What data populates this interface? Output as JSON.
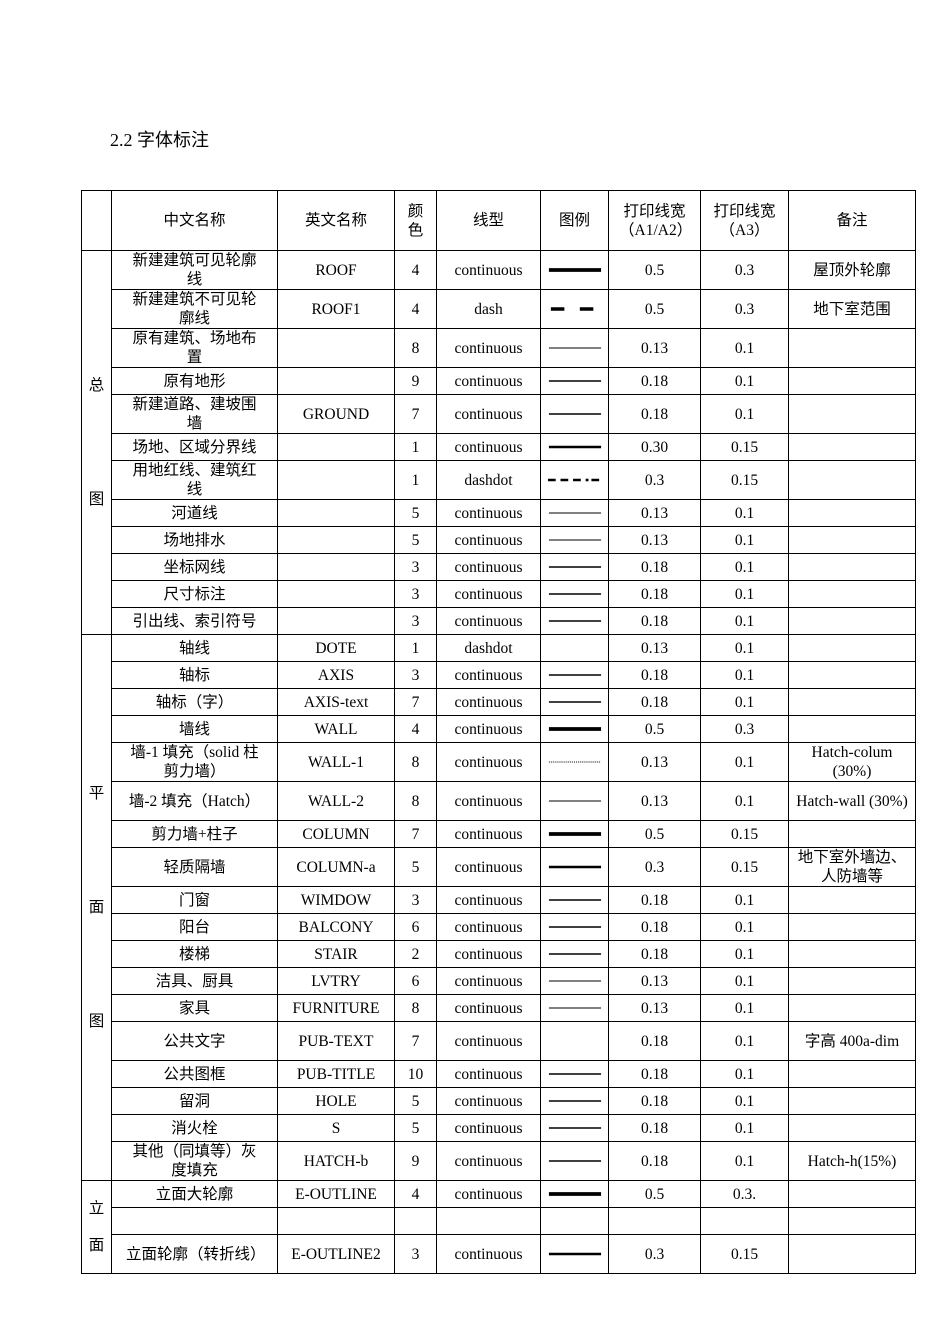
{
  "heading": "2.2 字体标注",
  "table": {
    "headers": [
      "",
      "中文名称",
      "英文名称",
      "颜色",
      "线型",
      "图例",
      "打印线宽（A1/A2）",
      "打印线宽（A3）",
      "备注"
    ],
    "groups": [
      {
        "label": [
          "总",
          "图"
        ],
        "rows": [
          {
            "cn": "新建建筑可见轮廓线",
            "en": "ROOF",
            "color": "4",
            "type": "continuous",
            "legend": "thick",
            "w1": "0.5",
            "w3": "0.3",
            "note": "屋顶外轮廓"
          },
          {
            "cn": "新建建筑不可见轮廓线",
            "en": "ROOF1",
            "color": "4",
            "type": "dash",
            "legend": "dash",
            "w1": "0.5",
            "w3": "0.3",
            "note": "地下室范围"
          },
          {
            "cn": "原有建筑、场地布置",
            "en": "",
            "color": "8",
            "type": "continuous",
            "legend": "thin",
            "w1": "0.13",
            "w3": "0.1",
            "note": ""
          },
          {
            "cn": "原有地形",
            "en": "",
            "color": "9",
            "type": "continuous",
            "legend": "medium",
            "w1": "0.18",
            "w3": "0.1",
            "note": ""
          },
          {
            "cn": "新建道路、建坡围墙",
            "en": "GROUND",
            "color": "7",
            "type": "continuous",
            "legend": "medium",
            "w1": "0.18",
            "w3": "0.1",
            "note": ""
          },
          {
            "cn": "场地、区域分界线",
            "en": "",
            "color": "1",
            "type": "continuous",
            "legend": "semi-thick",
            "w1": "0.30",
            "w3": "0.15",
            "note": ""
          },
          {
            "cn": "用地红线、建筑红线",
            "en": "",
            "color": "1",
            "type": "dashdot",
            "legend": "dashdot",
            "w1": "0.3",
            "w3": "0.15",
            "note": ""
          },
          {
            "cn": "河道线",
            "en": "",
            "color": "5",
            "type": "continuous",
            "legend": "thin",
            "w1": "0.13",
            "w3": "0.1",
            "note": ""
          },
          {
            "cn": "场地排水",
            "en": "",
            "color": "5",
            "type": "continuous",
            "legend": "thin",
            "w1": "0.13",
            "w3": "0.1",
            "note": ""
          },
          {
            "cn": "坐标网线",
            "en": "",
            "color": "3",
            "type": "continuous",
            "legend": "medium",
            "w1": "0.18",
            "w3": "0.1",
            "note": ""
          },
          {
            "cn": "尺寸标注",
            "en": "",
            "color": "3",
            "type": "continuous",
            "legend": "medium",
            "w1": "0.18",
            "w3": "0.1",
            "note": ""
          },
          {
            "cn": "引出线、索引符号",
            "en": "",
            "color": "3",
            "type": "continuous",
            "legend": "medium",
            "w1": "0.18",
            "w3": "0.1",
            "note": ""
          }
        ]
      },
      {
        "label": [
          "平",
          "面",
          "图"
        ],
        "rows": [
          {
            "cn": "轴线",
            "en": "DOTE",
            "color": "1",
            "type": "dashdot",
            "legend": "none",
            "w1": "0.13",
            "w3": "0.1",
            "note": ""
          },
          {
            "cn": "轴标",
            "en": "AXIS",
            "color": "3",
            "type": "continuous",
            "legend": "medium",
            "w1": "0.18",
            "w3": "0.1",
            "note": ""
          },
          {
            "cn": "轴标（字）",
            "en": "AXIS-text",
            "color": "7",
            "type": "continuous",
            "legend": "medium",
            "w1": "0.18",
            "w3": "0.1",
            "note": ""
          },
          {
            "cn": "墙线",
            "en": "WALL",
            "color": "4",
            "type": "continuous",
            "legend": "thick",
            "w1": "0.5",
            "w3": "0.3",
            "note": ""
          },
          {
            "cn": "墙-1 填充（solid 柱剪力墙）",
            "en": "WALL-1",
            "color": "8",
            "type": "continuous",
            "legend": "dotted",
            "w1": "0.13",
            "w3": "0.1",
            "note": "Hatch-colum (30%)"
          },
          {
            "cn": "墙-2 填充（Hatch）",
            "en": "WALL-2",
            "color": "8",
            "type": "continuous",
            "legend": "thin",
            "w1": "0.13",
            "w3": "0.1",
            "note": "Hatch-wall (30%)"
          },
          {
            "cn": "剪力墙+柱子",
            "en": "COLUMN",
            "color": "7",
            "type": "continuous",
            "legend": "thick",
            "w1": "0.5",
            "w3": "0.15",
            "note": ""
          },
          {
            "cn": "轻质隔墙",
            "en": "COLUMN-a",
            "color": "5",
            "type": "continuous",
            "legend": "semi-thick",
            "w1": "0.3",
            "w3": "0.15",
            "note": "地下室外墙边、人防墙等"
          },
          {
            "cn": "门窗",
            "en": "WIMDOW",
            "color": "3",
            "type": "continuous",
            "legend": "medium",
            "w1": "0.18",
            "w3": "0.1",
            "note": ""
          },
          {
            "cn": "阳台",
            "en": "BALCONY",
            "color": "6",
            "type": "continuous",
            "legend": "medium",
            "w1": "0.18",
            "w3": "0.1",
            "note": ""
          },
          {
            "cn": "楼梯",
            "en": "STAIR",
            "color": "2",
            "type": "continuous",
            "legend": "medium",
            "w1": "0.18",
            "w3": "0.1",
            "note": ""
          },
          {
            "cn": "洁具、厨具",
            "en": "LVTRY",
            "color": "6",
            "type": "continuous",
            "legend": "thin",
            "w1": "0.13",
            "w3": "0.1",
            "note": ""
          },
          {
            "cn": "家具",
            "en": "FURNITURE",
            "color": "8",
            "type": "continuous",
            "legend": "thin",
            "w1": "0.13",
            "w3": "0.1",
            "note": ""
          },
          {
            "cn": "公共文字",
            "en": "PUB-TEXT",
            "color": "7",
            "type": "continuous",
            "legend": "none",
            "w1": "0.18",
            "w3": "0.1",
            "note": "字高 400a-dim"
          },
          {
            "cn": "公共图框",
            "en": "PUB-TITLE",
            "color": "10",
            "type": "continuous",
            "legend": "medium",
            "w1": "0.18",
            "w3": "0.1",
            "note": ""
          },
          {
            "cn": "留洞",
            "en": "HOLE",
            "color": "5",
            "type": "continuous",
            "legend": "medium",
            "w1": "0.18",
            "w3": "0.1",
            "note": ""
          },
          {
            "cn": "消火栓",
            "en": "S",
            "color": "5",
            "type": "continuous",
            "legend": "medium",
            "w1": "0.18",
            "w3": "0.1",
            "note": ""
          },
          {
            "cn": "其他（同填等）灰度填充",
            "en": "HATCH-b",
            "color": "9",
            "type": "continuous",
            "legend": "medium",
            "w1": "0.18",
            "w3": "0.1",
            "note": "Hatch-h(15%)"
          }
        ]
      },
      {
        "label": [
          "立",
          "面"
        ],
        "rows": [
          {
            "cn": "立面大轮廓",
            "en": "E-OUTLINE",
            "color": "4",
            "type": "continuous",
            "legend": "thick",
            "w1": "0.5",
            "w3": "0.3.",
            "note": ""
          },
          {
            "cn": "",
            "en": "",
            "color": "",
            "type": "",
            "legend": "none",
            "w1": "",
            "w3": "",
            "note": ""
          },
          {
            "cn": "立面轮廓（转折线）",
            "en": "E-OUTLINE2",
            "color": "3",
            "type": "continuous",
            "legend": "semi-thick",
            "w1": "0.3",
            "w3": "0.15",
            "note": ""
          }
        ]
      }
    ]
  }
}
